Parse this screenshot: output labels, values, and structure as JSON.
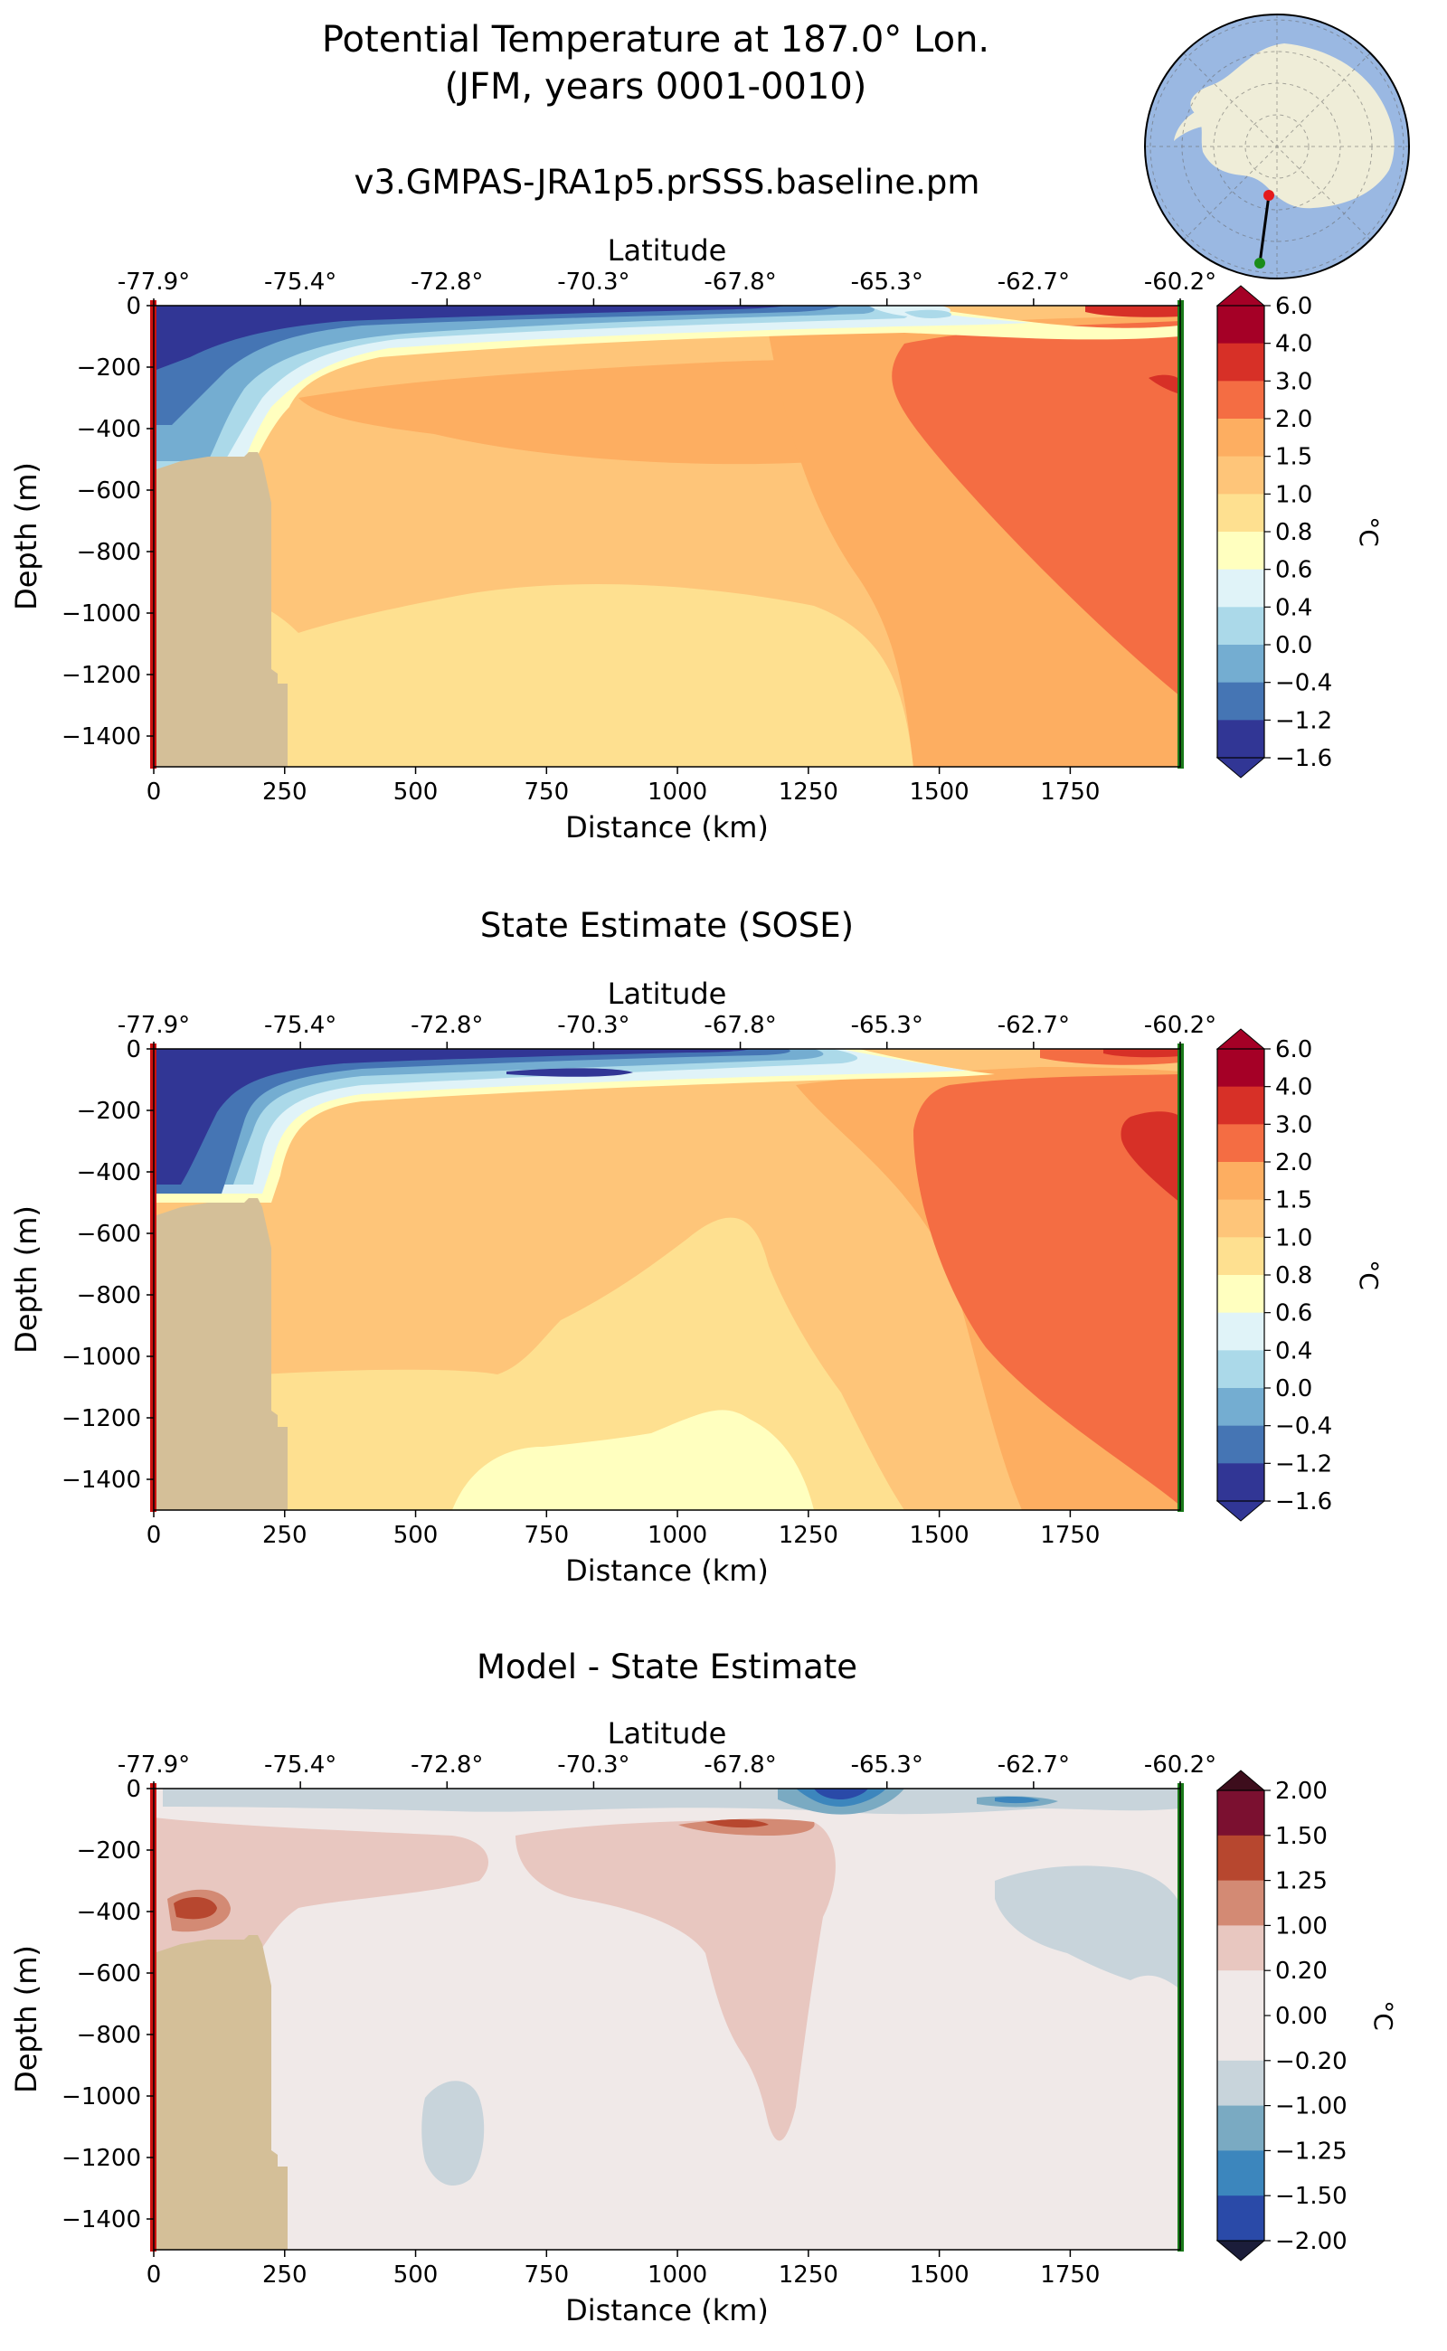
{
  "figure": {
    "title_line1": "Potential Temperature at 187.0° Lon.",
    "title_line2": "(JFM, years 0001-0010)"
  },
  "inset_map": {
    "description_icon": "antarctica-polar-map-icon",
    "transect_start_color": "#e31a1c",
    "transect_end_color": "#1a8c1a"
  },
  "colors": {
    "land": "#d4bf98",
    "left_bar": "#cc1111",
    "right_bar": "#1a7a1a"
  },
  "chart_data": [
    {
      "type": "heatmap",
      "title": "v3.GMPAS-JRA1p5.prSSS.baseline.pm",
      "xlabel": "Distance (km)",
      "ylabel": "Depth (m)",
      "top_xlabel": "Latitude",
      "xlim": [
        0,
        1960
      ],
      "ylim": [
        -1500,
        0
      ],
      "xticks": [
        "0",
        "250",
        "500",
        "750",
        "1000",
        "1250",
        "1500",
        "1750"
      ],
      "yticks": [
        "0",
        "−200",
        "−400",
        "−600",
        "−800",
        "−1000",
        "−1200",
        "−1400"
      ],
      "top_ticks": [
        "-77.9°",
        "-75.4°",
        "-72.8°",
        "-70.3°",
        "-67.8°",
        "-65.3°",
        "-62.7°",
        "-60.2°"
      ],
      "colorbar": {
        "label": "°C",
        "levels": [
          "6.0",
          "4.0",
          "3.0",
          "2.0",
          "1.5",
          "1.0",
          "0.8",
          "0.6",
          "0.4",
          "0.0",
          "−0.4",
          "−1.2",
          "−1.6"
        ],
        "colors": [
          "#a50026",
          "#d73027",
          "#f46d43",
          "#fdae61",
          "#fec579",
          "#fee090",
          "#ffffbf",
          "#e0f3f8",
          "#abd9e9",
          "#74add1",
          "#4575b4",
          "#313695"
        ]
      }
    },
    {
      "type": "heatmap",
      "title": "State Estimate (SOSE)",
      "xlabel": "Distance (km)",
      "ylabel": "Depth (m)",
      "top_xlabel": "Latitude",
      "xlim": [
        0,
        1960
      ],
      "ylim": [
        -1500,
        0
      ],
      "xticks": [
        "0",
        "250",
        "500",
        "750",
        "1000",
        "1250",
        "1500",
        "1750"
      ],
      "yticks": [
        "0",
        "−200",
        "−400",
        "−600",
        "−800",
        "−1000",
        "−1200",
        "−1400"
      ],
      "top_ticks": [
        "-77.9°",
        "-75.4°",
        "-72.8°",
        "-70.3°",
        "-67.8°",
        "-65.3°",
        "-62.7°",
        "-60.2°"
      ],
      "colorbar": {
        "label": "°C",
        "levels": [
          "6.0",
          "4.0",
          "3.0",
          "2.0",
          "1.5",
          "1.0",
          "0.8",
          "0.6",
          "0.4",
          "0.0",
          "−0.4",
          "−1.2",
          "−1.6"
        ],
        "colors": [
          "#a50026",
          "#d73027",
          "#f46d43",
          "#fdae61",
          "#fec579",
          "#fee090",
          "#ffffbf",
          "#e0f3f8",
          "#abd9e9",
          "#74add1",
          "#4575b4",
          "#313695"
        ]
      }
    },
    {
      "type": "heatmap",
      "title": "Model - State Estimate",
      "xlabel": "Distance (km)",
      "ylabel": "Depth (m)",
      "top_xlabel": "Latitude",
      "xlim": [
        0,
        1960
      ],
      "ylim": [
        -1500,
        0
      ],
      "xticks": [
        "0",
        "250",
        "500",
        "750",
        "1000",
        "1250",
        "1500",
        "1750"
      ],
      "yticks": [
        "0",
        "−200",
        "−400",
        "−600",
        "−800",
        "−1000",
        "−1200",
        "−1400"
      ],
      "top_ticks": [
        "-77.9°",
        "-75.4°",
        "-72.8°",
        "-70.3°",
        "-67.8°",
        "-65.3°",
        "-62.7°",
        "-60.2°"
      ],
      "colorbar": {
        "label": "°C",
        "levels": [
          "2.00",
          "1.50",
          "1.25",
          "1.00",
          "0.20",
          "0.00",
          "−0.20",
          "−1.00",
          "−1.25",
          "−1.50",
          "−2.00"
        ],
        "colors": [
          "#7b1030",
          "#b7472f",
          "#d38a74",
          "#e8c7c0",
          "#f0e9e8",
          "#f0e9e8",
          "#c8d4db",
          "#7aaac2",
          "#3c86bd",
          "#2a4aa8"
        ]
      }
    }
  ]
}
